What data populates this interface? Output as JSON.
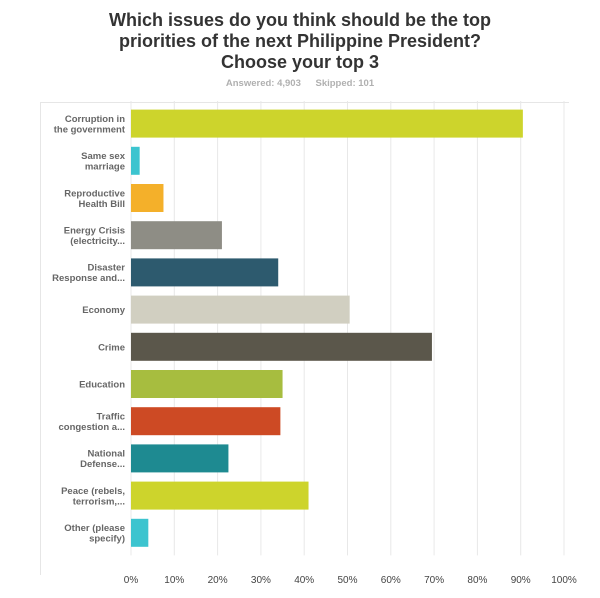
{
  "title_lines": [
    "Which issues do you think should be the top",
    "priorities of the next Philippine President?",
    "Choose your top 3"
  ],
  "answered": "Answered: 4,903",
  "skipped": "Skipped: 101",
  "chart_data": {
    "type": "bar",
    "orientation": "horizontal",
    "title": "Which issues do you think should be the top priorities of the next Philippine President? Choose your top 3",
    "categories": [
      [
        "Corruption in",
        "the government"
      ],
      [
        "Same sex",
        "marriage"
      ],
      [
        "Reproductive",
        "Health Bill"
      ],
      [
        "Energy Crisis",
        "(electricity..."
      ],
      [
        "Disaster",
        "Response and..."
      ],
      [
        "Economy"
      ],
      [
        "Crime"
      ],
      [
        "Education"
      ],
      [
        "Traffic",
        "congestion a..."
      ],
      [
        "National",
        "Defense..."
      ],
      [
        "Peace (rebels,",
        "terrorism,..."
      ],
      [
        "Other (please",
        "specify)"
      ]
    ],
    "values": [
      90.5,
      2,
      7.5,
      21,
      34,
      50.5,
      69.5,
      35,
      34.5,
      22.5,
      41,
      4
    ],
    "colors": [
      "#cdd42c",
      "#3cc4cf",
      "#f4b02a",
      "#8e8d85",
      "#2d5a6e",
      "#d1cfc1",
      "#5b574b",
      "#a7bd3f",
      "#cd4a24",
      "#1e8a91",
      "#cdd42c",
      "#3cc4cf"
    ],
    "xticks": [
      "0%",
      "10%",
      "20%",
      "30%",
      "40%",
      "50%",
      "60%",
      "70%",
      "80%",
      "90%",
      "100%"
    ],
    "xlim": [
      0,
      100
    ],
    "unit": "%"
  }
}
